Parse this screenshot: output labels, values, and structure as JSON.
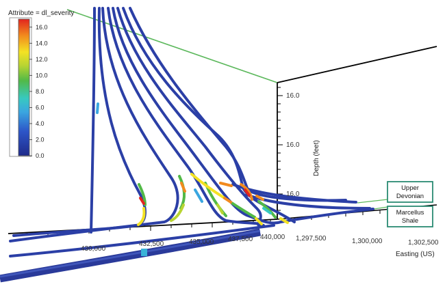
{
  "chart_data": {
    "type": "3d-well-trajectories",
    "legend": {
      "title": "Attribute = dl_severity",
      "ticks": [
        "16.0",
        "14.0",
        "12.0",
        "10.0",
        "8.0",
        "6.0",
        "4.0",
        "2.0",
        "0.0"
      ],
      "range": [
        0,
        17
      ]
    },
    "depth_axis": {
      "label": "Depth (feet)",
      "ticks": [
        "16.0",
        "16.0",
        "16.0"
      ]
    },
    "northing_axis": {
      "ticks": [
        "430,000",
        "432,500",
        "435,000",
        "437,500",
        "440,000"
      ]
    },
    "easting_axis": {
      "label": "Easting (US)",
      "ticks": [
        "1,297,500",
        "1,300,000",
        "1,302,500"
      ]
    },
    "formations": [
      {
        "label_line1": "Upper",
        "label_line2": "Devonian"
      },
      {
        "label_line1": "Marcellus",
        "label_line2": "Shale"
      }
    ],
    "colors": {
      "well_base": "#2b3fa6",
      "box_line": "#000000",
      "guide_line": "#5cb85c",
      "callout_border": "#2a8a72"
    }
  }
}
